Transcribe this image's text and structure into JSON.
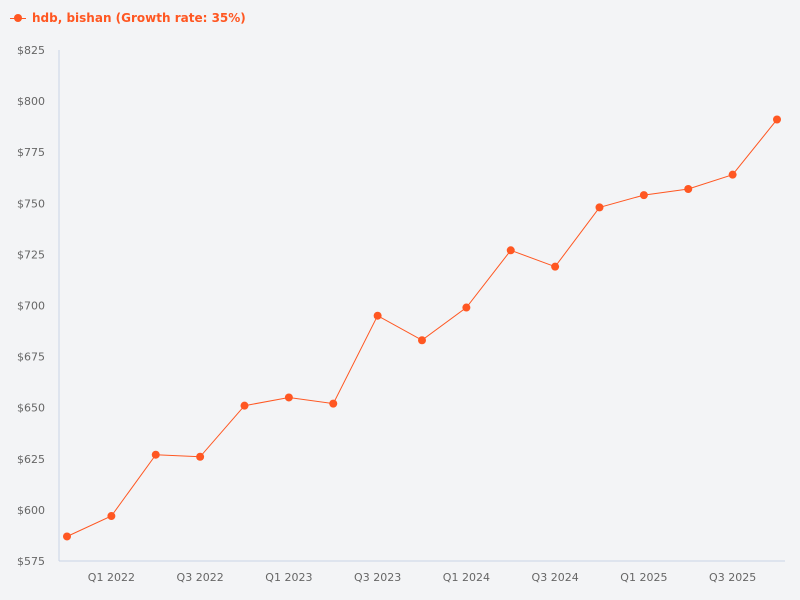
{
  "legend": {
    "label": "hdb, bishan (Growth rate: 35%)",
    "color": "#ff5722"
  },
  "colors": {
    "background": "#f3f4f6",
    "axis": "#c9d3e6",
    "tick_label": "#666666",
    "series": "#ff5722"
  },
  "chart_data": {
    "type": "line",
    "title": "",
    "xlabel": "",
    "ylabel": "",
    "categories": [
      "Q4 2021",
      "Q1 2022",
      "Q2 2022",
      "Q3 2022",
      "Q4 2022",
      "Q1 2023",
      "Q2 2023",
      "Q3 2023",
      "Q4 2023",
      "Q1 2024",
      "Q2 2024",
      "Q3 2024",
      "Q4 2024",
      "Q1 2025",
      "Q2 2025",
      "Q3 2025",
      "Q4 2025"
    ],
    "x_tick_labels": [
      "Q1 2022",
      "Q3 2022",
      "Q1 2023",
      "Q3 2023",
      "Q1 2024",
      "Q3 2024",
      "Q1 2025",
      "Q3 2025"
    ],
    "series": [
      {
        "name": "hdb, bishan (Growth rate: 35%)",
        "color": "#ff5722",
        "values": [
          587,
          597,
          627,
          626,
          651,
          655,
          652,
          695,
          683,
          699,
          727,
          719,
          748,
          754,
          757,
          764,
          791
        ]
      }
    ],
    "ylim": [
      575,
      825
    ],
    "y_ticks": [
      575,
      600,
      625,
      650,
      675,
      700,
      725,
      750,
      775,
      800,
      825
    ],
    "y_tick_labels": [
      "$575",
      "$600",
      "$625",
      "$650",
      "$675",
      "$700",
      "$725",
      "$750",
      "$775",
      "$800",
      "$825"
    ],
    "grid": false,
    "legend_position": "top-left"
  }
}
